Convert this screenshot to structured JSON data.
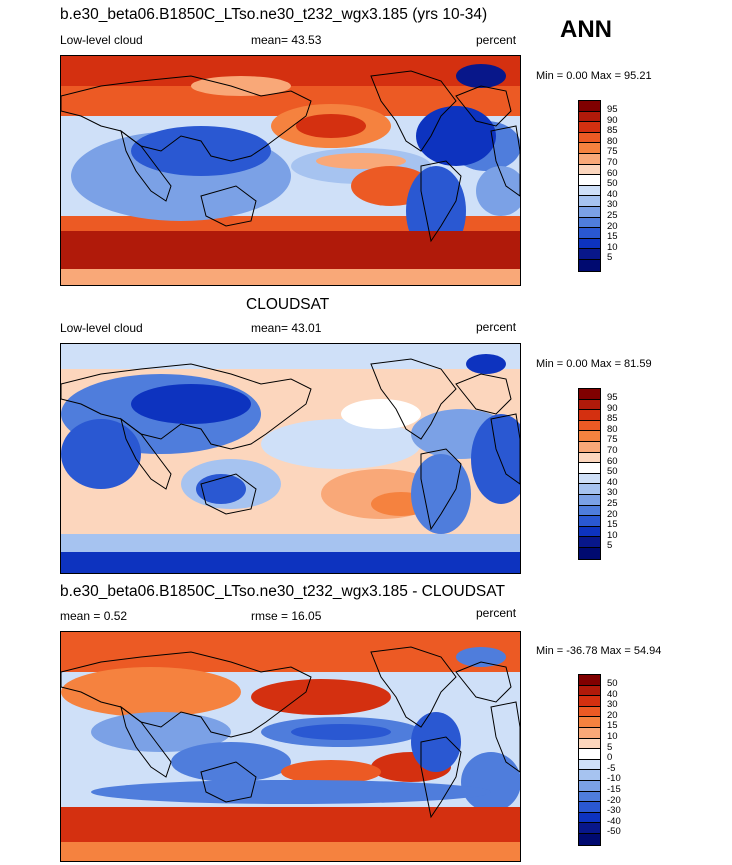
{
  "season": "ANN",
  "panels": [
    {
      "title": "b.e30_beta06.B1850C_LTso.ne30_t232_wgx3.185 (yrs 10-34)",
      "left_label": "Low-level cloud",
      "stat": "mean=  43.53",
      "units": "percent",
      "minmax": "Min =   0.00 Max =  95.21",
      "colorbar": {
        "labels": [
          "95",
          "90",
          "85",
          "80",
          "75",
          "70",
          "60",
          "50",
          "40",
          "30",
          "25",
          "20",
          "15",
          "10",
          "5"
        ],
        "colors": [
          "#800000",
          "#b01a0a",
          "#d43010",
          "#ec5a24",
          "#f5823f",
          "#f9a878",
          "#fcd6bd",
          "#ffffff",
          "#cfe0f8",
          "#a6c3f0",
          "#7ba1e6",
          "#4f7ddc",
          "#2a58d2",
          "#0d33bf",
          "#08178a",
          "#000a70"
        ]
      }
    },
    {
      "title": "CLOUDSAT",
      "left_label": "Low-level cloud",
      "stat": "mean=  43.01",
      "units": "percent",
      "minmax": "Min =   0.00 Max =  81.59",
      "colorbar": {
        "labels": [
          "95",
          "90",
          "85",
          "80",
          "75",
          "70",
          "60",
          "50",
          "40",
          "30",
          "25",
          "20",
          "15",
          "10",
          "5"
        ],
        "colors": [
          "#800000",
          "#b01a0a",
          "#d43010",
          "#ec5a24",
          "#f5823f",
          "#f9a878",
          "#fcd6bd",
          "#ffffff",
          "#cfe0f8",
          "#a6c3f0",
          "#7ba1e6",
          "#4f7ddc",
          "#2a58d2",
          "#0d33bf",
          "#08178a",
          "#000a70"
        ]
      }
    },
    {
      "title": "b.e30_beta06.B1850C_LTso.ne30_t232_wgx3.185 - CLOUDSAT",
      "left_label": "mean =   0.52",
      "stat": "rmse =  16.05",
      "units": "percent",
      "minmax": "Min = -36.78 Max =  54.94",
      "colorbar": {
        "labels": [
          "50",
          "40",
          "30",
          "20",
          "15",
          "10",
          "5",
          "0",
          "-5",
          "-10",
          "-15",
          "-20",
          "-30",
          "-40",
          "-50"
        ],
        "colors": [
          "#800000",
          "#b01a0a",
          "#d43010",
          "#ec5a24",
          "#f5823f",
          "#f9a878",
          "#fcd6bd",
          "#ffffff",
          "#cfe0f8",
          "#a6c3f0",
          "#7ba1e6",
          "#4f7ddc",
          "#2a58d2",
          "#0d33bf",
          "#08178a",
          "#000a70"
        ]
      }
    }
  ]
}
